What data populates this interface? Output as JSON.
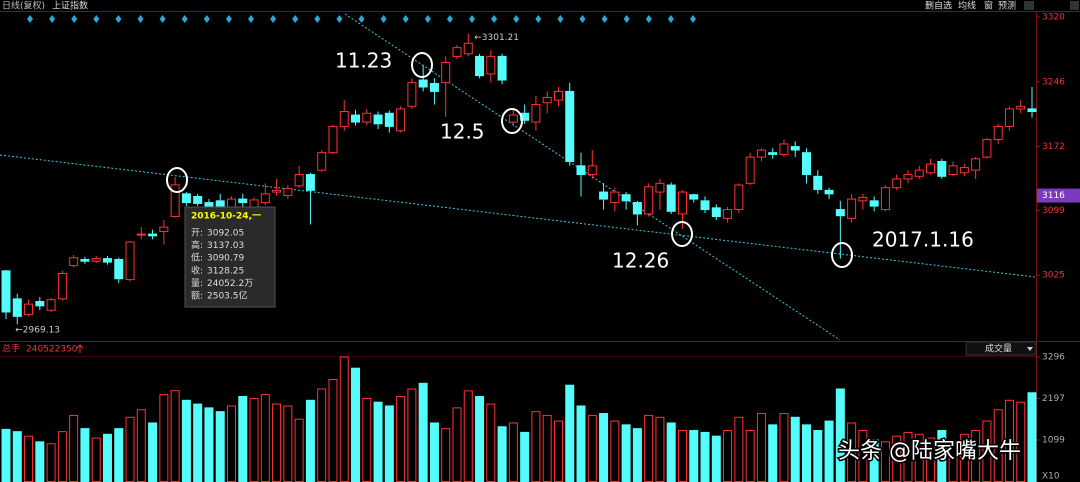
{
  "header": {
    "period": "日线(复权)",
    "name": "上证指数",
    "tools": [
      "删自选",
      "均线",
      "窗",
      "预测"
    ]
  },
  "chart_data": [
    {
      "type": "candlestick",
      "open": [
        3030,
        2998,
        2980,
        2995,
        2985,
        2998,
        3036,
        3043,
        3041,
        3044,
        3043,
        3020,
        3071,
        3072,
        3075,
        3092.05,
        3118,
        3115,
        3108,
        3110,
        3100,
        3112,
        3100,
        3108,
        3120,
        3116,
        3127,
        3140,
        3145,
        3165,
        3195,
        3208,
        3200,
        3208,
        3210,
        3190,
        3218,
        3248,
        3244,
        3245,
        3275,
        3278,
        3275,
        3255,
        3275,
        3200,
        3210,
        3200,
        3222,
        3225,
        3235,
        3150,
        3140,
        3120,
        3108,
        3117,
        3108,
        3095,
        3120,
        3128,
        3095,
        3117,
        3110,
        3102,
        3090,
        3100,
        3130,
        3160,
        3165,
        3163,
        3172,
        3165,
        3138,
        3122,
        3100,
        3090,
        3110,
        3110,
        3100,
        3125,
        3135,
        3138,
        3142,
        3155,
        3140,
        3142,
        3145,
        3160,
        3180,
        3195,
        3215,
        3215
      ],
      "high": [
        3031,
        3004,
        2997,
        3000,
        2999,
        3030,
        3048,
        3046,
        3047,
        3047,
        3045,
        3064,
        3080,
        3077,
        3088,
        3137.03,
        3120,
        3118,
        3112,
        3118,
        3115,
        3118,
        3114,
        3130,
        3135,
        3128,
        3150,
        3142,
        3168,
        3197,
        3225,
        3214,
        3215,
        3212,
        3213,
        3218,
        3250,
        3265,
        3250,
        3275,
        3288,
        3301.21,
        3278,
        3282,
        3278,
        3215,
        3220,
        3230,
        3235,
        3240,
        3245,
        3165,
        3168,
        3130,
        3125,
        3120,
        3110,
        3130,
        3135,
        3131,
        3122,
        3118,
        3115,
        3106,
        3103,
        3130,
        3165,
        3170,
        3170,
        3180,
        3178,
        3170,
        3145,
        3125,
        3110,
        3118,
        3118,
        3115,
        3128,
        3140,
        3145,
        3150,
        3158,
        3158,
        3155,
        3152,
        3160,
        3182,
        3198,
        3218,
        3225,
        3240
      ],
      "low": [
        2975,
        2969.13,
        2978,
        2985,
        2983,
        2996,
        3034,
        3038,
        3039,
        3037,
        3016,
        3018,
        3066,
        3066,
        3060,
        3090.79,
        3104,
        3104,
        3094,
        3100,
        3095,
        3100,
        3097,
        3105,
        3116,
        3112,
        3125,
        3083,
        3143,
        3163,
        3190,
        3196,
        3196,
        3192,
        3188,
        3188,
        3215,
        3235,
        3220,
        3206,
        3272,
        3275,
        3250,
        3245,
        3243,
        3195,
        3198,
        3190,
        3210,
        3218,
        3150,
        3115,
        3135,
        3100,
        3098,
        3100,
        3082,
        3092,
        3100,
        3095,
        3078,
        3108,
        3096,
        3088,
        3085,
        3096,
        3128,
        3155,
        3158,
        3160,
        3160,
        3130,
        3118,
        3112,
        3044,
        3085,
        3100,
        3098,
        3098,
        3122,
        3130,
        3135,
        3140,
        3135,
        3138,
        3138,
        3135,
        3158,
        3175,
        3190,
        3210,
        3205
      ],
      "close": [
        2983,
        2978,
        2992,
        2990,
        2997,
        3027,
        3045,
        3041,
        3044,
        3040,
        3021,
        3063,
        3072,
        3070,
        3080,
        3128.25,
        3108,
        3107,
        3104,
        3103,
        3112,
        3108,
        3111,
        3118,
        3122,
        3124,
        3140,
        3122,
        3165,
        3195,
        3212,
        3200,
        3210,
        3198,
        3195,
        3215,
        3245,
        3240,
        3235,
        3268,
        3285,
        3290,
        3253,
        3275,
        3248,
        3208,
        3202,
        3220,
        3228,
        3235,
        3155,
        3140,
        3150,
        3112,
        3120,
        3110,
        3095,
        3126,
        3130,
        3098,
        3120,
        3112,
        3100,
        3092,
        3100,
        3128,
        3160,
        3168,
        3163,
        3175,
        3168,
        3140,
        3123,
        3118,
        3093,
        3112,
        3114,
        3104,
        3125,
        3135,
        3140,
        3145,
        3152,
        3138,
        3150,
        3148,
        3158,
        3180,
        3195,
        3215,
        3218,
        3212
      ],
      "up_color": "#ff3232",
      "down_color": "#54fcfc",
      "ylim": [
        2951,
        3328
      ],
      "yticks": [
        3320,
        3246,
        3172,
        3099,
        3025
      ],
      "current_price": 3116,
      "high_label": "←3301.21",
      "low_label": "←2969.13",
      "annotations": [
        "11.23",
        "12.5",
        "12.26",
        "2017.1.16"
      ]
    },
    {
      "type": "bar",
      "title": "总手",
      "total": 240522350,
      "indicator": "成交量",
      "values": [
        1380,
        1320,
        1200,
        1050,
        1000,
        1320,
        1750,
        1400,
        1150,
        1250,
        1400,
        1700,
        1900,
        1550,
        2300,
        2405,
        2150,
        2050,
        1950,
        1850,
        2000,
        2250,
        2200,
        2300,
        2050,
        2000,
        1650,
        2150,
        2450,
        2700,
        3296,
        3000,
        2200,
        2100,
        2000,
        2250,
        2450,
        2600,
        1550,
        1400,
        1950,
        2400,
        2250,
        2050,
        1450,
        1550,
        1300,
        1850,
        1750,
        1600,
        2550,
        2000,
        1750,
        1800,
        1600,
        1500,
        1400,
        1750,
        1700,
        1550,
        1350,
        1350,
        1300,
        1200,
        1350,
        1700,
        1350,
        1800,
        1500,
        1800,
        1700,
        1500,
        1350,
        1600,
        2450,
        1550,
        1350,
        1100,
        1050,
        1200,
        1300,
        1250,
        1150,
        1350,
        1050,
        1250,
        1350,
        1600,
        1900,
        2150,
        2100,
        2350
      ],
      "ylim": [
        0,
        3535
      ],
      "yticks": [
        3296,
        2197,
        1099
      ],
      "unit_label": "X10"
    }
  ],
  "tooltip": {
    "date": "2016-10-24,一",
    "labels": [
      "开:",
      "高:",
      "低:",
      "收:",
      "量:",
      "额:"
    ],
    "volume": "24052.2万",
    "amount": "2503.5亿"
  },
  "watermark": "头条 @陆家嘴大牛"
}
